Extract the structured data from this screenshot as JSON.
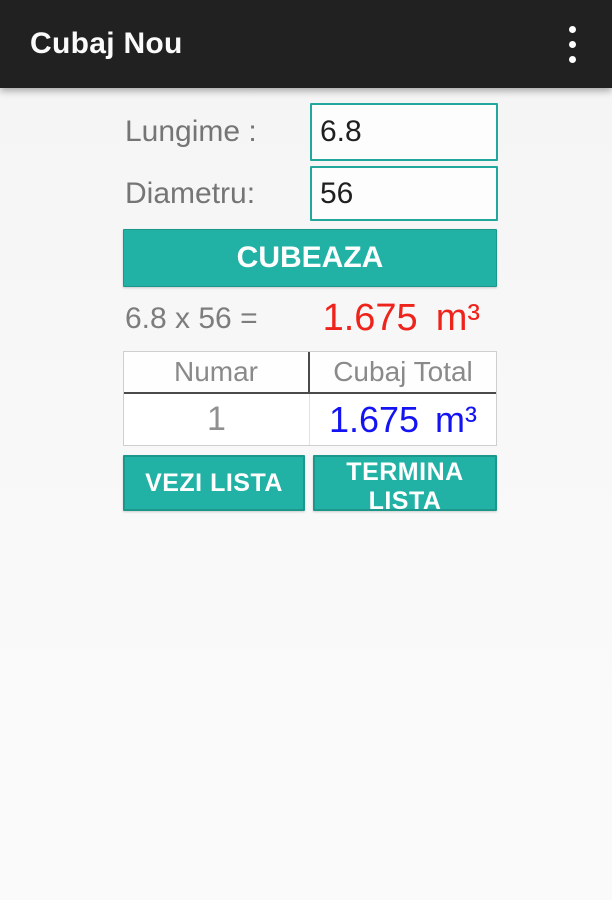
{
  "app_bar": {
    "title": "Cubaj Nou",
    "menu_icon": "overflow-menu-icon"
  },
  "form": {
    "length_label": "Lungime :",
    "length_value": "6.8",
    "diameter_label": "Diametru:",
    "diameter_value": "56",
    "calculate_button_label": "CUBEAZA"
  },
  "result": {
    "expression": "6.8 x 56 =",
    "value": "1.675",
    "unit": "m³"
  },
  "table": {
    "headers": [
      "Numar",
      "Cubaj Total"
    ],
    "rows": [
      {
        "numar": "1",
        "total_value": "1.675",
        "total_unit": "m³"
      }
    ]
  },
  "actions": {
    "view_list_label": "VEZI LISTA",
    "end_list_label": "TERMINA LISTA"
  },
  "colors": {
    "app_bar_background": "#212121",
    "accent_teal": "#22b2a5",
    "input_border_teal": "#21a79b",
    "result_red": "#ee241c",
    "total_blue": "#1414f2",
    "label_gray": "#757575",
    "page_background": "#f7f7f7"
  }
}
